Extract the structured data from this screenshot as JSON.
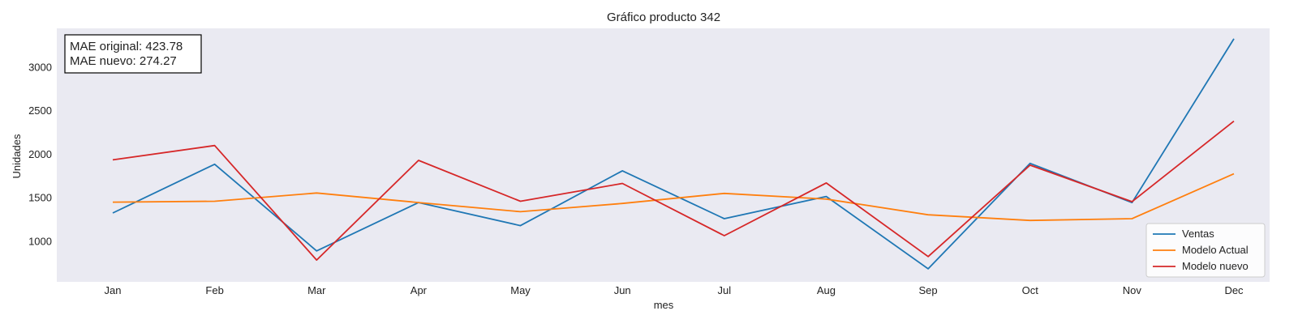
{
  "chart_data": {
    "type": "line",
    "title": "Gráfico producto 342",
    "xlabel": "mes",
    "ylabel": "Unidades",
    "categories": [
      "Jan",
      "Feb",
      "Mar",
      "Apr",
      "May",
      "Jun",
      "Jul",
      "Aug",
      "Sep",
      "Oct",
      "Nov",
      "Dec"
    ],
    "yticks": [
      1000,
      1500,
      2000,
      2500,
      3000
    ],
    "ylim": [
      540,
      3450
    ],
    "grid": false,
    "background": "#eaeaf2",
    "legend_position": "lower-right",
    "series": [
      {
        "name": "Ventas",
        "color": "#1f77b4",
        "values": [
          1330,
          1890,
          895,
          1450,
          1185,
          1815,
          1265,
          1520,
          690,
          1900,
          1450,
          3330
        ]
      },
      {
        "name": "Modelo Actual",
        "color": "#ff7f0e",
        "values": [
          1455,
          1465,
          1560,
          1450,
          1345,
          1440,
          1555,
          1490,
          1310,
          1245,
          1265,
          1780
        ]
      },
      {
        "name": "Modelo nuevo",
        "color": "#d62728",
        "values": [
          1940,
          2105,
          790,
          1935,
          1465,
          1670,
          1070,
          1675,
          830,
          1880,
          1460,
          2385
        ]
      }
    ],
    "annotation": {
      "line1": "MAE original: 423.78",
      "line2": "MAE nuevo: 274.27"
    }
  }
}
